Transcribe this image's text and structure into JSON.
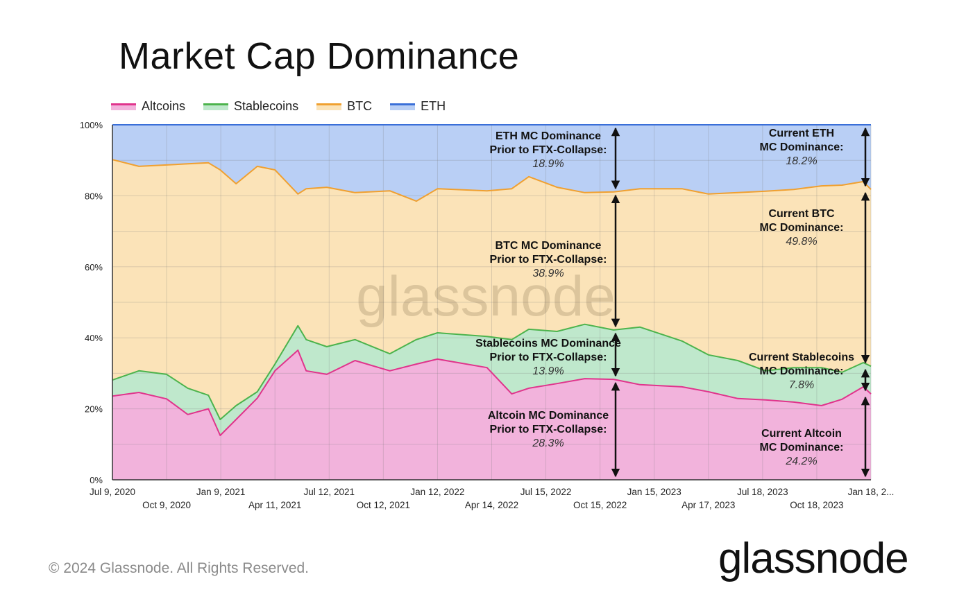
{
  "title": "Market Cap Dominance",
  "footer": {
    "copyright": "© 2024 Glassnode. All Rights Reserved.",
    "logo": "glassnode"
  },
  "watermark": "glassnode",
  "colors": {
    "Altcoins": {
      "line": "#e0348c",
      "fill": "#f2b3dc"
    },
    "Stablecoins": {
      "line": "#4cb34c",
      "fill": "#bfe8cc"
    },
    "BTC": {
      "line": "#f0a030",
      "fill": "#fbe3b8"
    },
    "ETH": {
      "line": "#3a6fd8",
      "fill": "#b9cff5"
    }
  },
  "chart_data": {
    "type": "area",
    "stacked": true,
    "title": "Market Cap Dominance",
    "legend": [
      "Altcoins",
      "Stablecoins",
      "BTC",
      "ETH"
    ],
    "legend_placement": "top-left",
    "grid": true,
    "ylim": [
      0,
      100
    ],
    "y_ticks": [
      "0%",
      "20%",
      "40%",
      "60%",
      "80%",
      "100%"
    ],
    "x_range": [
      "2020-07-09",
      "2024-01-18"
    ],
    "x_ticks": [
      {
        "date": "2020-07-09",
        "label": "Jul 9, 2020",
        "row": 1
      },
      {
        "date": "2020-10-09",
        "label": "Oct 9, 2020",
        "row": 2
      },
      {
        "date": "2021-01-09",
        "label": "Jan 9, 2021",
        "row": 1
      },
      {
        "date": "2021-04-11",
        "label": "Apr 11, 2021",
        "row": 2
      },
      {
        "date": "2021-07-12",
        "label": "Jul 12, 2021",
        "row": 1
      },
      {
        "date": "2021-10-12",
        "label": "Oct 12, 2021",
        "row": 2
      },
      {
        "date": "2022-01-12",
        "label": "Jan 12, 2022",
        "row": 1
      },
      {
        "date": "2022-04-14",
        "label": "Apr 14, 2022",
        "row": 2
      },
      {
        "date": "2022-07-15",
        "label": "Jul 15, 2022",
        "row": 1
      },
      {
        "date": "2022-10-15",
        "label": "Oct 15, 2022",
        "row": 2
      },
      {
        "date": "2023-01-15",
        "label": "Jan 15, 2023",
        "row": 1
      },
      {
        "date": "2023-04-17",
        "label": "Apr 17, 2023",
        "row": 2
      },
      {
        "date": "2023-07-18",
        "label": "Jul 18, 2023",
        "row": 1
      },
      {
        "date": "2023-10-18",
        "label": "Oct 18, 2023",
        "row": 2
      },
      {
        "date": "2024-01-18",
        "label": "Jan 18, 2...",
        "row": 1
      }
    ],
    "x": [
      "2020-07-09",
      "2020-08-23",
      "2020-10-09",
      "2020-11-14",
      "2020-12-19",
      "2021-01-08",
      "2021-02-04",
      "2021-03-12",
      "2021-04-11",
      "2021-05-20",
      "2021-06-03",
      "2021-07-08",
      "2021-08-25",
      "2021-10-23",
      "2021-12-07",
      "2022-01-12",
      "2022-04-06",
      "2022-05-18",
      "2022-06-16",
      "2022-08-03",
      "2022-09-19",
      "2022-11-07",
      "2022-12-22",
      "2023-03-03",
      "2023-04-17",
      "2023-06-06",
      "2023-07-23",
      "2023-09-09",
      "2023-10-26",
      "2023-11-30",
      "2024-01-05",
      "2024-01-18"
    ],
    "series": [
      {
        "name": "Altcoins",
        "values": [
          23.6,
          24.6,
          22.8,
          18.4,
          20.0,
          12.5,
          17.0,
          23.0,
          30.7,
          36.5,
          30.7,
          29.7,
          33.6,
          30.7,
          32.6,
          34.0,
          31.6,
          24.2,
          25.8,
          27.1,
          28.5,
          28.3,
          26.8,
          26.2,
          24.8,
          22.9,
          22.5,
          21.9,
          20.9,
          22.7,
          26.2,
          24.2
        ]
      },
      {
        "name": "Stablecoins",
        "values": [
          4.5,
          6.1,
          6.9,
          7.4,
          3.8,
          4.5,
          3.9,
          1.8,
          1.9,
          6.9,
          8.8,
          7.8,
          5.9,
          4.8,
          6.9,
          7.4,
          8.8,
          15.3,
          16.6,
          14.7,
          15.3,
          13.9,
          16.2,
          12.9,
          10.4,
          10.7,
          8.2,
          9.7,
          10.7,
          7.6,
          6.8,
          7.8
        ]
      },
      {
        "name": "BTC",
        "values": [
          62.1,
          57.6,
          59.0,
          63.2,
          65.5,
          70.3,
          62.5,
          63.5,
          54.7,
          37.1,
          42.5,
          44.9,
          41.4,
          45.9,
          39.0,
          40.6,
          41.0,
          42.5,
          43.0,
          40.6,
          37.1,
          38.9,
          39.0,
          42.9,
          45.3,
          47.3,
          50.6,
          50.2,
          51.2,
          52.7,
          51.0,
          49.8
        ]
      },
      {
        "name": "ETH",
        "values": [
          9.8,
          11.7,
          11.3,
          11.0,
          10.7,
          12.7,
          16.6,
          11.7,
          12.7,
          19.5,
          18.0,
          17.6,
          19.1,
          18.6,
          21.5,
          18.0,
          18.6,
          18.0,
          14.6,
          17.6,
          19.1,
          18.9,
          18.0,
          18.0,
          19.5,
          19.1,
          18.7,
          18.2,
          17.2,
          17.0,
          16.0,
          18.2
        ]
      }
    ],
    "annotations": [
      {
        "series": "ETH",
        "at": "2022-11-07",
        "line1": "ETH MC Dominance",
        "line2": "Prior to FTX-Collapse:",
        "value": "18.9%"
      },
      {
        "series": "BTC",
        "at": "2022-11-07",
        "line1": "BTC MC Dominance",
        "line2": "Prior to FTX-Collapse:",
        "value": "38.9%"
      },
      {
        "series": "Stablecoins",
        "at": "2022-11-07",
        "line1": "Stablecoins MC Dominance",
        "line2": "Prior to FTX-Collapse:",
        "value": "13.9%"
      },
      {
        "series": "Altcoins",
        "at": "2022-11-07",
        "line1": "Altcoin MC Dominance",
        "line2": "Prior to FTX-Collapse:",
        "value": "28.3%"
      },
      {
        "series": "ETH",
        "at": "2024-01-18",
        "line1": "Current ETH",
        "line2": "MC Dominance:",
        "value": "18.2%"
      },
      {
        "series": "BTC",
        "at": "2024-01-18",
        "line1": "Current BTC",
        "line2": "MC Dominance:",
        "value": "49.8%"
      },
      {
        "series": "Stablecoins",
        "at": "2024-01-18",
        "line1": "Current Stablecoins",
        "line2": "MC Dominance:",
        "value": "7.8%"
      },
      {
        "series": "Altcoins",
        "at": "2024-01-18",
        "line1": "Current Altcoin",
        "line2": "MC Dominance:",
        "value": "24.2%"
      }
    ]
  }
}
